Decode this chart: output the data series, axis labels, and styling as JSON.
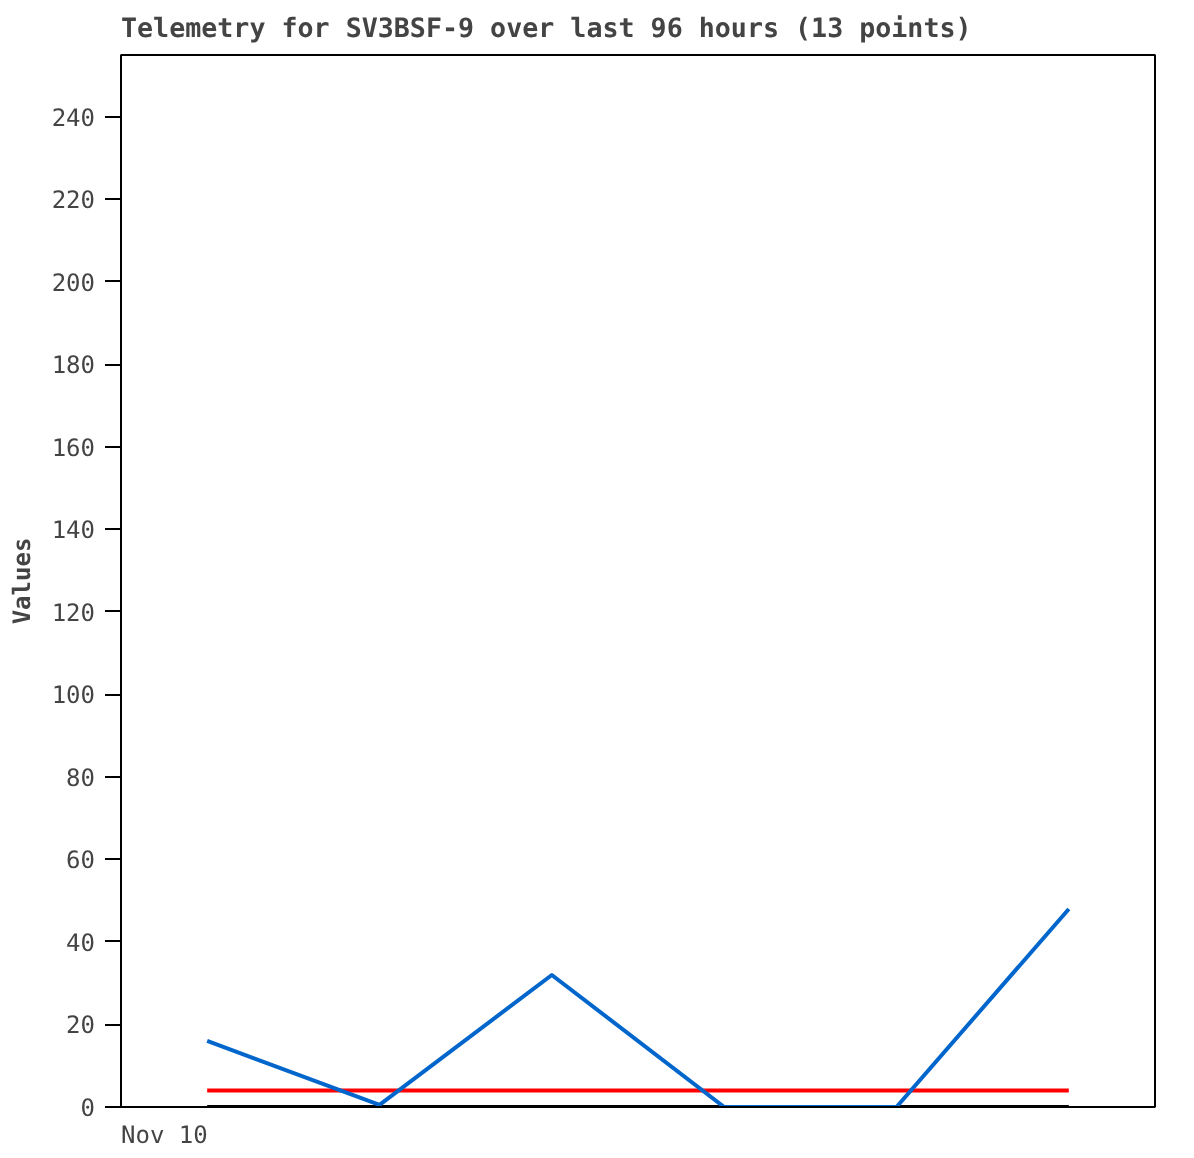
{
  "chart_data": {
    "type": "line",
    "title": "Telemetry for SV3BSF-9 over last 96 hours (13 points)",
    "ylabel": "Values",
    "annotations": [
      "Nov 10"
    ],
    "categories": [
      null,
      null,
      null,
      null,
      null,
      null
    ],
    "ylim": [
      0,
      255
    ],
    "yticks": [
      0,
      20,
      40,
      60,
      80,
      100,
      120,
      140,
      160,
      180,
      200,
      220,
      240
    ],
    "series": [
      {
        "color": "#0066cc",
        "values": [
          16,
          0.5,
          32,
          0,
          0,
          48
        ]
      }
    ],
    "ref_lines": [
      {
        "axis": "y",
        "value": 4,
        "color": "#ff0000"
      },
      {
        "axis": "y",
        "value": 0,
        "color": "#000000"
      }
    ],
    "grid": false
  }
}
